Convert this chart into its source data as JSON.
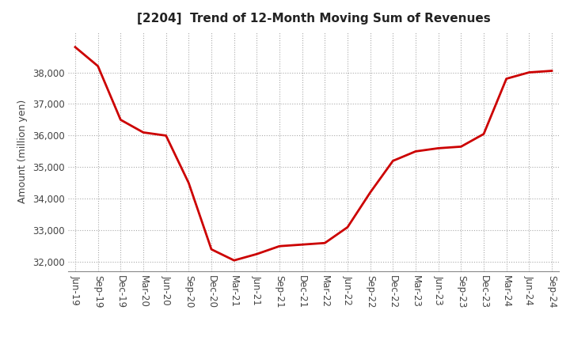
{
  "title": "[2204]  Trend of 12-Month Moving Sum of Revenues",
  "ylabel": "Amount (million yen)",
  "line_color": "#cc0000",
  "background_color": "#ffffff",
  "grid_color": "#aaaaaa",
  "x_labels": [
    "Jun-19",
    "Sep-19",
    "Dec-19",
    "Mar-20",
    "Jun-20",
    "Sep-20",
    "Dec-20",
    "Mar-21",
    "Jun-21",
    "Sep-21",
    "Dec-21",
    "Mar-22",
    "Jun-22",
    "Sep-22",
    "Dec-22",
    "Mar-23",
    "Jun-23",
    "Sep-23",
    "Dec-23",
    "Mar-24",
    "Jun-24",
    "Sep-24"
  ],
  "values": [
    38800,
    38200,
    36500,
    36100,
    36000,
    34500,
    32400,
    32050,
    32250,
    32500,
    32550,
    32600,
    33100,
    34200,
    35200,
    35500,
    35600,
    35650,
    36050,
    37800,
    38000,
    38050
  ],
  "ylim": [
    31700,
    39300
  ],
  "yticks": [
    32000,
    33000,
    34000,
    35000,
    36000,
    37000,
    38000
  ],
  "title_fontsize": 11,
  "ylabel_fontsize": 9,
  "tick_fontsize": 8.5,
  "linewidth": 2.0
}
